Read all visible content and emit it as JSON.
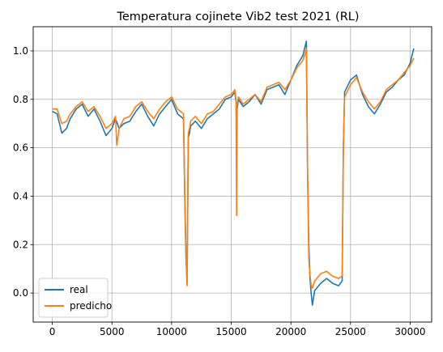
{
  "chart_data": {
    "type": "line",
    "title": "Temperatura cojinete Vib2 test 2021 (RL)",
    "xlabel": "",
    "ylabel": "",
    "xlim": [
      -1600,
      31800
    ],
    "ylim": [
      -0.12,
      1.1
    ],
    "xticks": [
      0,
      5000,
      10000,
      15000,
      20000,
      25000,
      30000
    ],
    "yticks": [
      0.0,
      0.2,
      0.4,
      0.6,
      0.8,
      1.0
    ],
    "xtick_labels": [
      "0",
      "5000",
      "10000",
      "15000",
      "20000",
      "25000",
      "30000"
    ],
    "ytick_labels": [
      "0.0",
      "0.2",
      "0.4",
      "0.6",
      "0.8",
      "1.0"
    ],
    "grid": true,
    "legend_position": "lower left",
    "series": [
      {
        "name": "real",
        "color": "#1f77b4",
        "x": [
          0,
          400,
          800,
          1200,
          1500,
          2000,
          2500,
          3000,
          3500,
          4000,
          4500,
          5000,
          5300,
          5600,
          6000,
          6500,
          7000,
          7500,
          8000,
          8500,
          9000,
          9500,
          10000,
          10500,
          11000,
          11100,
          11200,
          11300,
          11400,
          11500,
          11600,
          12000,
          12500,
          13000,
          13500,
          14000,
          14500,
          15000,
          15300,
          15400,
          15500,
          15600,
          16000,
          16500,
          17000,
          17500,
          18000,
          18500,
          19000,
          19500,
          20000,
          20500,
          21000,
          21300,
          21400,
          21500,
          21600,
          21700,
          21800,
          22000,
          22500,
          23000,
          23500,
          24000,
          24300,
          24400,
          24500,
          25000,
          25500,
          26000,
          26500,
          27000,
          27500,
          28000,
          28500,
          29000,
          29500,
          30000,
          30300
        ],
        "y": [
          0.75,
          0.74,
          0.66,
          0.68,
          0.72,
          0.76,
          0.78,
          0.73,
          0.76,
          0.71,
          0.65,
          0.68,
          0.72,
          0.68,
          0.7,
          0.71,
          0.75,
          0.78,
          0.73,
          0.69,
          0.74,
          0.77,
          0.8,
          0.74,
          0.72,
          0.4,
          0.15,
          0.04,
          0.64,
          0.66,
          0.69,
          0.71,
          0.68,
          0.72,
          0.74,
          0.76,
          0.8,
          0.81,
          0.83,
          0.79,
          0.76,
          0.8,
          0.77,
          0.79,
          0.82,
          0.78,
          0.84,
          0.85,
          0.86,
          0.82,
          0.88,
          0.94,
          0.98,
          1.04,
          0.5,
          0.2,
          0.06,
          0.0,
          -0.05,
          0.01,
          0.04,
          0.06,
          0.04,
          0.03,
          0.05,
          0.6,
          0.83,
          0.88,
          0.9,
          0.82,
          0.77,
          0.74,
          0.78,
          0.83,
          0.85,
          0.88,
          0.9,
          0.95,
          1.01
        ]
      },
      {
        "name": "predicho",
        "color": "#ff7f0e",
        "x": [
          0,
          400,
          800,
          1200,
          1500,
          2000,
          2500,
          3000,
          3500,
          4000,
          4500,
          5000,
          5300,
          5400,
          5600,
          6000,
          6500,
          7000,
          7500,
          8000,
          8500,
          9000,
          9500,
          10000,
          10500,
          11000,
          11100,
          11200,
          11300,
          11400,
          11500,
          11600,
          12000,
          12500,
          13000,
          13500,
          14000,
          14500,
          15000,
          15300,
          15400,
          15450,
          15500,
          15600,
          16000,
          16500,
          17000,
          17500,
          18000,
          18500,
          19000,
          19500,
          20000,
          20500,
          21000,
          21200,
          21300,
          21400,
          21500,
          21600,
          21700,
          21800,
          22000,
          22500,
          23000,
          23500,
          24000,
          24300,
          24400,
          24500,
          25000,
          25500,
          26000,
          26500,
          27000,
          27500,
          28000,
          28500,
          29000,
          29500,
          30000,
          30300
        ],
        "y": [
          0.76,
          0.76,
          0.7,
          0.71,
          0.74,
          0.77,
          0.79,
          0.75,
          0.77,
          0.73,
          0.68,
          0.7,
          0.73,
          0.61,
          0.68,
          0.72,
          0.73,
          0.77,
          0.79,
          0.75,
          0.72,
          0.76,
          0.79,
          0.81,
          0.76,
          0.74,
          0.42,
          0.17,
          0.03,
          0.66,
          0.68,
          0.71,
          0.73,
          0.7,
          0.74,
          0.75,
          0.78,
          0.81,
          0.82,
          0.84,
          0.8,
          0.32,
          0.78,
          0.81,
          0.78,
          0.8,
          0.82,
          0.79,
          0.85,
          0.86,
          0.87,
          0.84,
          0.88,
          0.93,
          0.96,
          0.99,
          1.01,
          0.5,
          0.14,
          0.08,
          0.03,
          0.02,
          0.05,
          0.08,
          0.09,
          0.07,
          0.06,
          0.07,
          0.61,
          0.81,
          0.86,
          0.89,
          0.83,
          0.79,
          0.76,
          0.79,
          0.84,
          0.86,
          0.88,
          0.91,
          0.94,
          0.97
        ]
      }
    ]
  }
}
